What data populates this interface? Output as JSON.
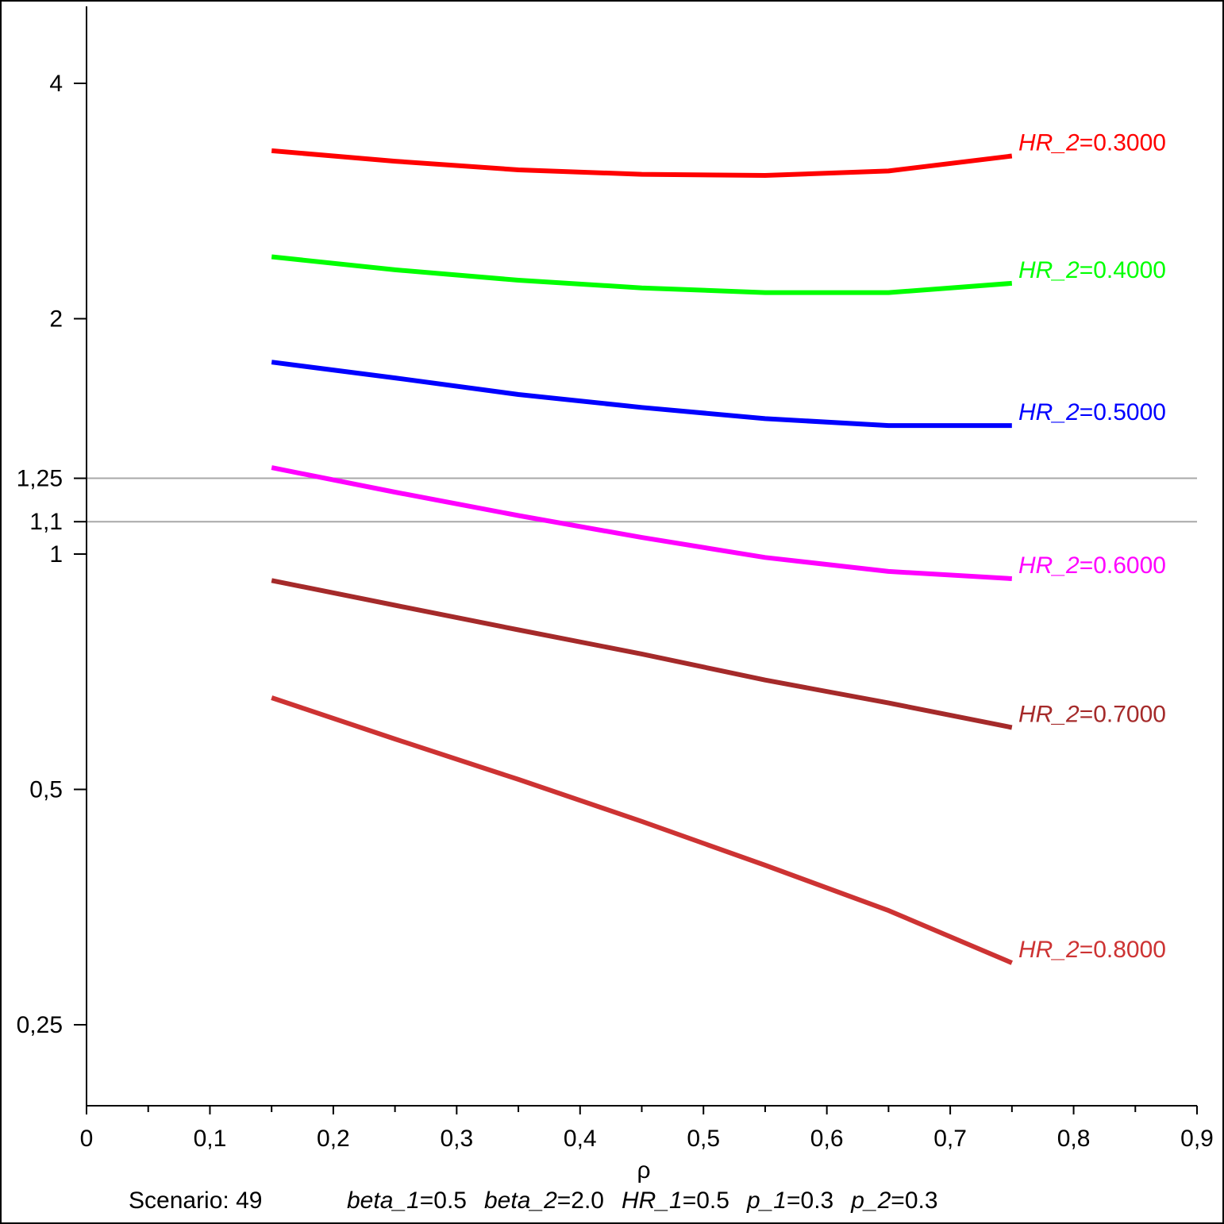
{
  "chart_data": {
    "type": "line",
    "xlabel": "ρ",
    "ylabel": "",
    "title": "",
    "xlim": [
      0,
      0.9
    ],
    "ylim": [
      0.2,
      5
    ],
    "y_scale": "log2",
    "grid": false,
    "x_ticks": [
      {
        "value": 0,
        "label": "0"
      },
      {
        "value": 0.1,
        "label": "0,1"
      },
      {
        "value": 0.2,
        "label": "0,2"
      },
      {
        "value": 0.3,
        "label": "0,3"
      },
      {
        "value": 0.4,
        "label": "0,4"
      },
      {
        "value": 0.5,
        "label": "0,5"
      },
      {
        "value": 0.6,
        "label": "0,6"
      },
      {
        "value": 0.7,
        "label": "0,7"
      },
      {
        "value": 0.8,
        "label": "0,8"
      },
      {
        "value": 0.9,
        "label": "0,9"
      }
    ],
    "x_minor_ticks": [
      0.05,
      0.15,
      0.25,
      0.35,
      0.45,
      0.55,
      0.65,
      0.75,
      0.85
    ],
    "y_ticks": [
      {
        "value": 4,
        "label": "4"
      },
      {
        "value": 2,
        "label": "2"
      },
      {
        "value": 1.25,
        "label": "1,25"
      },
      {
        "value": 1.1,
        "label": "1,1"
      },
      {
        "value": 1,
        "label": "1"
      },
      {
        "value": 0.5,
        "label": "0,5"
      },
      {
        "value": 0.25,
        "label": "0,25"
      }
    ],
    "reference_lines": [
      1.25,
      1.1
    ],
    "x": [
      0.15,
      0.25,
      0.35,
      0.45,
      0.55,
      0.65,
      0.75
    ],
    "series": [
      {
        "var": "HR_2",
        "eq": "=",
        "value": "0.3000",
        "color": "#ff0000",
        "values": [
          3.28,
          3.18,
          3.1,
          3.06,
          3.05,
          3.09,
          3.23
        ]
      },
      {
        "var": "HR_2",
        "eq": "=",
        "value": "0.4000",
        "color": "#00ff00",
        "values": [
          2.4,
          2.31,
          2.24,
          2.19,
          2.16,
          2.16,
          2.22
        ]
      },
      {
        "var": "HR_2",
        "eq": "=",
        "value": "0.5000",
        "color": "#0000ff",
        "values": [
          1.76,
          1.68,
          1.6,
          1.54,
          1.49,
          1.46,
          1.46
        ]
      },
      {
        "var": "HR_2",
        "eq": "=",
        "value": "0.6000",
        "color": "#ff00ff",
        "values": [
          1.29,
          1.2,
          1.12,
          1.05,
          0.99,
          0.95,
          0.93
        ]
      },
      {
        "var": "HR_2",
        "eq": "=",
        "value": "0.7000",
        "color": "#a52a2a",
        "values": [
          0.925,
          0.86,
          0.8,
          0.745,
          0.69,
          0.645,
          0.6
        ]
      },
      {
        "var": "HR_2",
        "eq": "=",
        "value": "0.8000",
        "color": "#cd3333",
        "values": [
          0.655,
          0.58,
          0.515,
          0.455,
          0.4,
          0.35,
          0.3
        ]
      }
    ]
  },
  "footer": {
    "scenario": "Scenario: 49",
    "params": [
      {
        "var": "beta_1",
        "eq": "=",
        "value": "0.5"
      },
      {
        "var": "beta_2",
        "eq": "=",
        "value": "2.0"
      },
      {
        "var": "HR_1",
        "eq": "=",
        "value": "0.5"
      },
      {
        "var": "p_1",
        "eq": "=",
        "value": "0.3"
      },
      {
        "var": "p_2",
        "eq": "=",
        "value": "0.3"
      }
    ]
  }
}
